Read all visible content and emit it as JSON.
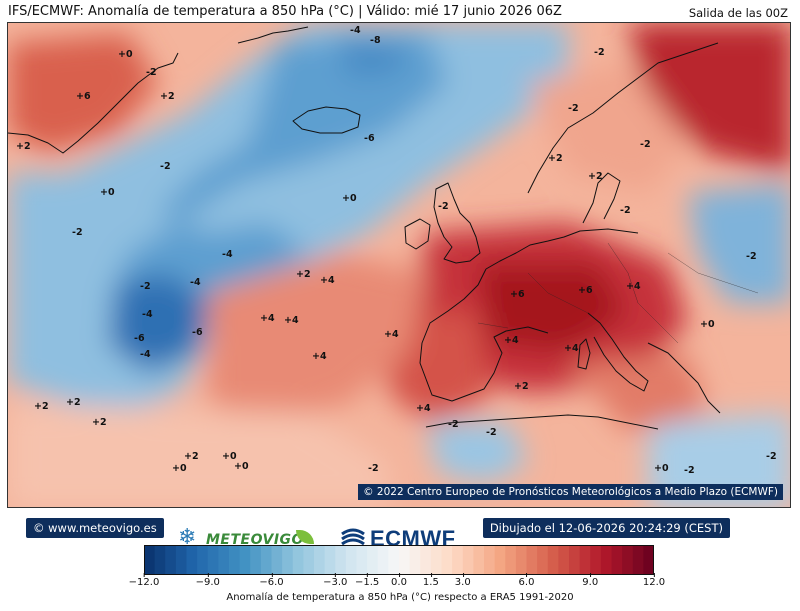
{
  "header": {
    "title": "IFS/ECMWF: Anomalía de temperatura a 850 hPa (°C) | Válido: mié 17 junio 2026 06Z",
    "run": "Salida de las 00Z"
  },
  "map": {
    "copyright": "© 2022 Centro Europeo de Pronósticos Meteorológicos a Medio Plazo (ECMWF)",
    "contour_labels": [
      {
        "text": "-4"
      },
      {
        "text": "-8"
      },
      {
        "text": "-2"
      },
      {
        "text": "+0"
      },
      {
        "text": "-2"
      },
      {
        "text": "+6"
      },
      {
        "text": "+2"
      },
      {
        "text": "-6"
      },
      {
        "text": "-2"
      },
      {
        "text": "+2"
      },
      {
        "text": "+2"
      },
      {
        "text": "+0"
      },
      {
        "text": "-2"
      },
      {
        "text": "+0"
      },
      {
        "text": "-2"
      },
      {
        "text": "-2"
      },
      {
        "text": "-4"
      },
      {
        "text": "-2"
      },
      {
        "text": "-4"
      },
      {
        "text": "+2"
      },
      {
        "text": "+4"
      },
      {
        "text": "-4"
      },
      {
        "text": "+4"
      },
      {
        "text": "+4"
      },
      {
        "text": "-6"
      },
      {
        "text": "-6"
      },
      {
        "text": "-4"
      },
      {
        "text": "+4"
      },
      {
        "text": "+4"
      },
      {
        "text": "+6"
      },
      {
        "text": "+6"
      },
      {
        "text": "+4"
      },
      {
        "text": "+4"
      },
      {
        "text": "+4"
      },
      {
        "text": "+2"
      },
      {
        "text": "+0"
      },
      {
        "text": "+2"
      },
      {
        "text": "+2"
      },
      {
        "text": "+4"
      },
      {
        "text": "-2"
      },
      {
        "text": "-2"
      },
      {
        "text": "+2"
      },
      {
        "text": "+0"
      },
      {
        "text": "+0"
      },
      {
        "text": "+0"
      },
      {
        "text": "+2"
      },
      {
        "text": "-2"
      },
      {
        "text": "+0"
      },
      {
        "text": "-2"
      },
      {
        "text": "-2"
      },
      {
        "text": "-2"
      },
      {
        "text": "-2"
      },
      {
        "text": "-2"
      },
      {
        "text": "+2"
      }
    ]
  },
  "footer": {
    "website": "© www.meteovigo.es",
    "drawn": "Dibujado el 12-06-2026 20:24:29 (CEST)",
    "logo_meteovigo": "METEOVIGO",
    "logo_ecmwf": "ECMWF"
  },
  "colorbar": {
    "label": "Anomalía de temperatura a 850 hPa (°C) respecto a ERA5 1991-2020",
    "min": -12.0,
    "max": 12.0,
    "ticks": [
      "−12.0",
      "−9.0",
      "−6.0",
      "−3.0",
      "−1.5",
      "0.0",
      "1.5",
      "3.0",
      "6.0",
      "9.0",
      "12.0"
    ],
    "tick_values": [
      -12,
      -9,
      -6,
      -3,
      -1.5,
      0,
      1.5,
      3,
      6,
      9,
      12
    ],
    "colors": [
      "#08306b",
      "#2166ac",
      "#4393c3",
      "#92c5de",
      "#d1e5f0",
      "#f7f7f7",
      "#fddbc7",
      "#f4a582",
      "#d6604d",
      "#b2182b",
      "#67001f"
    ]
  }
}
